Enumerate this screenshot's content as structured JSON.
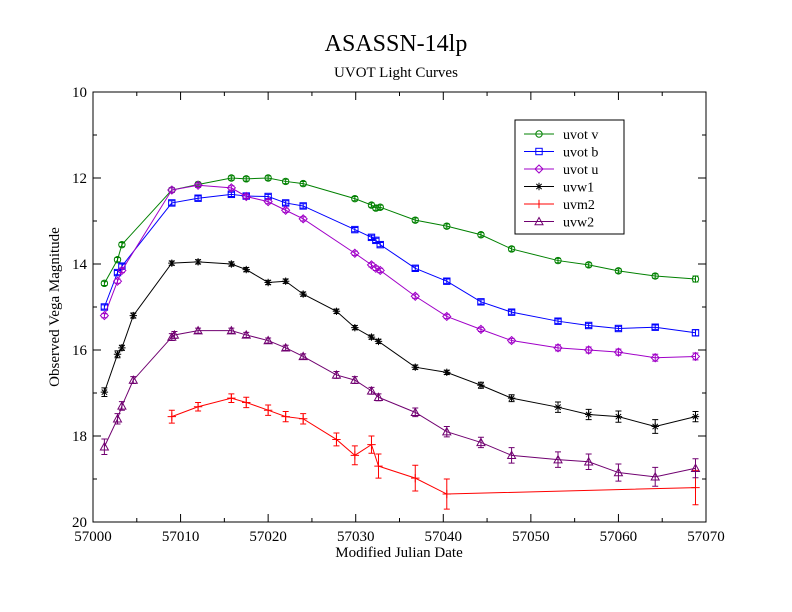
{
  "chart_data": {
    "type": "line",
    "title": "ASASSN-14lp",
    "subtitle": "UVOT Light Curves",
    "xlabel": "Modified Julian Date",
    "ylabel": "Observed Vega Magnitude",
    "xlim": [
      57000,
      57070
    ],
    "ylim": [
      10,
      20
    ],
    "y_inverted": true,
    "x_ticks": [
      57000,
      57010,
      57020,
      57030,
      57040,
      57050,
      57060,
      57070
    ],
    "y_ticks": [
      10,
      12,
      14,
      16,
      18,
      20
    ],
    "grid": false,
    "legend_position": "top-right",
    "series": [
      {
        "name": "uvot v",
        "color": "#008000",
        "marker": "circle",
        "points": [
          [
            57001.3,
            14.45,
            0.05
          ],
          [
            57002.8,
            13.9,
            0.05
          ],
          [
            57003.3,
            13.55,
            0.05
          ],
          [
            57009.0,
            12.28,
            0.05
          ],
          [
            57012.0,
            12.15,
            0.05
          ],
          [
            57015.8,
            12.0,
            0.05
          ],
          [
            57017.5,
            12.02,
            0.05
          ],
          [
            57020.0,
            12.0,
            0.05
          ],
          [
            57022.0,
            12.08,
            0.05
          ],
          [
            57024.0,
            12.13,
            0.05
          ],
          [
            57029.9,
            12.48,
            0.05
          ],
          [
            57031.8,
            12.63,
            0.05
          ],
          [
            57032.3,
            12.7,
            0.05
          ],
          [
            57032.8,
            12.68,
            0.05
          ],
          [
            57036.8,
            12.98,
            0.05
          ],
          [
            57040.4,
            13.12,
            0.05
          ],
          [
            57044.3,
            13.32,
            0.05
          ],
          [
            57047.8,
            13.65,
            0.05
          ],
          [
            57053.1,
            13.92,
            0.05
          ],
          [
            57056.6,
            14.02,
            0.05
          ],
          [
            57060.0,
            14.16,
            0.05
          ],
          [
            57064.2,
            14.28,
            0.05
          ],
          [
            57068.8,
            14.35,
            0.07
          ]
        ]
      },
      {
        "name": "uvot b",
        "color": "#0000ff",
        "marker": "square",
        "points": [
          [
            57001.3,
            15.0,
            0.05
          ],
          [
            57002.8,
            14.2,
            0.05
          ],
          [
            57003.3,
            14.05,
            0.05
          ],
          [
            57009.0,
            12.58,
            0.05
          ],
          [
            57012.0,
            12.47,
            0.05
          ],
          [
            57015.8,
            12.38,
            0.05
          ],
          [
            57017.5,
            12.42,
            0.05
          ],
          [
            57020.0,
            12.43,
            0.05
          ],
          [
            57022.0,
            12.58,
            0.05
          ],
          [
            57024.0,
            12.65,
            0.05
          ],
          [
            57029.9,
            13.2,
            0.05
          ],
          [
            57031.8,
            13.38,
            0.05
          ],
          [
            57032.3,
            13.45,
            0.05
          ],
          [
            57032.8,
            13.55,
            0.05
          ],
          [
            57036.8,
            14.1,
            0.05
          ],
          [
            57040.4,
            14.4,
            0.05
          ],
          [
            57044.3,
            14.88,
            0.05
          ],
          [
            57047.8,
            15.12,
            0.05
          ],
          [
            57053.1,
            15.33,
            0.05
          ],
          [
            57056.6,
            15.43,
            0.05
          ],
          [
            57060.0,
            15.5,
            0.05
          ],
          [
            57064.2,
            15.47,
            0.05
          ],
          [
            57068.8,
            15.6,
            0.07
          ]
        ]
      },
      {
        "name": "uvot u",
        "color": "#a000c8",
        "marker": "diamond",
        "points": [
          [
            57001.3,
            15.2,
            0.05
          ],
          [
            57002.8,
            14.4,
            0.05
          ],
          [
            57003.3,
            14.15,
            0.05
          ],
          [
            57009.0,
            12.28,
            0.05
          ],
          [
            57012.0,
            12.17,
            0.05
          ],
          [
            57015.8,
            12.23,
            0.05
          ],
          [
            57017.5,
            12.43,
            0.05
          ],
          [
            57020.0,
            12.55,
            0.05
          ],
          [
            57022.0,
            12.75,
            0.05
          ],
          [
            57024.0,
            12.95,
            0.05
          ],
          [
            57029.9,
            13.75,
            0.05
          ],
          [
            57031.8,
            14.02,
            0.05
          ],
          [
            57032.3,
            14.1,
            0.05
          ],
          [
            57032.8,
            14.15,
            0.05
          ],
          [
            57036.8,
            14.75,
            0.05
          ],
          [
            57040.4,
            15.22,
            0.05
          ],
          [
            57044.3,
            15.52,
            0.05
          ],
          [
            57047.8,
            15.78,
            0.05
          ],
          [
            57053.1,
            15.95,
            0.07
          ],
          [
            57056.6,
            16.0,
            0.07
          ],
          [
            57060.0,
            16.05,
            0.07
          ],
          [
            57064.2,
            16.18,
            0.08
          ],
          [
            57068.8,
            16.15,
            0.08
          ]
        ]
      },
      {
        "name": "uvw1",
        "color": "#000000",
        "marker": "asterisk",
        "points": [
          [
            57001.3,
            16.98,
            0.1
          ],
          [
            57002.8,
            16.1,
            0.08
          ],
          [
            57003.3,
            15.95,
            0.06
          ],
          [
            57004.6,
            15.2,
            0.06
          ],
          [
            57009.0,
            13.98,
            0.05
          ],
          [
            57012.0,
            13.95,
            0.05
          ],
          [
            57015.8,
            14.0,
            0.05
          ],
          [
            57017.5,
            14.13,
            0.05
          ],
          [
            57020.0,
            14.43,
            0.05
          ],
          [
            57022.0,
            14.4,
            0.05
          ],
          [
            57024.0,
            14.7,
            0.05
          ],
          [
            57027.8,
            15.1,
            0.05
          ],
          [
            57029.9,
            15.48,
            0.05
          ],
          [
            57031.8,
            15.7,
            0.05
          ],
          [
            57032.6,
            15.8,
            0.05
          ],
          [
            57036.8,
            16.4,
            0.05
          ],
          [
            57040.4,
            16.52,
            0.05
          ],
          [
            57044.3,
            16.82,
            0.07
          ],
          [
            57047.8,
            17.12,
            0.08
          ],
          [
            57053.1,
            17.33,
            0.12
          ],
          [
            57056.6,
            17.5,
            0.12
          ],
          [
            57060.0,
            17.55,
            0.13
          ],
          [
            57064.2,
            17.78,
            0.16
          ],
          [
            57068.8,
            17.55,
            0.12
          ]
        ]
      },
      {
        "name": "uvm2",
        "color": "#ff0000",
        "marker": "plus",
        "points": [
          [
            57009.0,
            17.55,
            0.15
          ],
          [
            57012.0,
            17.32,
            0.1
          ],
          [
            57015.8,
            17.12,
            0.1
          ],
          [
            57017.5,
            17.22,
            0.12
          ],
          [
            57020.0,
            17.4,
            0.12
          ],
          [
            57022.0,
            17.55,
            0.12
          ],
          [
            57024.0,
            17.6,
            0.12
          ],
          [
            57027.8,
            18.08,
            0.15
          ],
          [
            57029.9,
            18.45,
            0.22
          ],
          [
            57031.8,
            18.2,
            0.2
          ],
          [
            57032.6,
            18.7,
            0.28
          ],
          [
            57036.8,
            18.98,
            0.3
          ],
          [
            57040.4,
            19.35,
            0.35
          ],
          [
            57068.8,
            19.2,
            0.4
          ]
        ]
      },
      {
        "name": "uvw2",
        "color": "#700070",
        "marker": "triangle",
        "points": [
          [
            57001.3,
            18.25,
            0.18
          ],
          [
            57002.8,
            17.6,
            0.12
          ],
          [
            57003.3,
            17.3,
            0.1
          ],
          [
            57004.6,
            16.7,
            0.08
          ],
          [
            57009.0,
            15.7,
            0.08
          ],
          [
            57009.3,
            15.65,
            0.08
          ],
          [
            57012.0,
            15.55,
            0.06
          ],
          [
            57015.8,
            15.55,
            0.06
          ],
          [
            57017.5,
            15.65,
            0.06
          ],
          [
            57020.0,
            15.78,
            0.06
          ],
          [
            57022.0,
            15.95,
            0.06
          ],
          [
            57024.0,
            16.15,
            0.06
          ],
          [
            57027.8,
            16.58,
            0.08
          ],
          [
            57029.9,
            16.7,
            0.08
          ],
          [
            57031.8,
            16.95,
            0.08
          ],
          [
            57032.6,
            17.1,
            0.08
          ],
          [
            57036.8,
            17.45,
            0.1
          ],
          [
            57040.4,
            17.9,
            0.12
          ],
          [
            57044.3,
            18.15,
            0.12
          ],
          [
            57047.8,
            18.45,
            0.18
          ],
          [
            57053.1,
            18.55,
            0.18
          ],
          [
            57056.6,
            18.6,
            0.18
          ],
          [
            57060.0,
            18.85,
            0.2
          ],
          [
            57064.2,
            18.95,
            0.22
          ],
          [
            57068.8,
            18.75,
            0.22
          ]
        ]
      }
    ]
  }
}
